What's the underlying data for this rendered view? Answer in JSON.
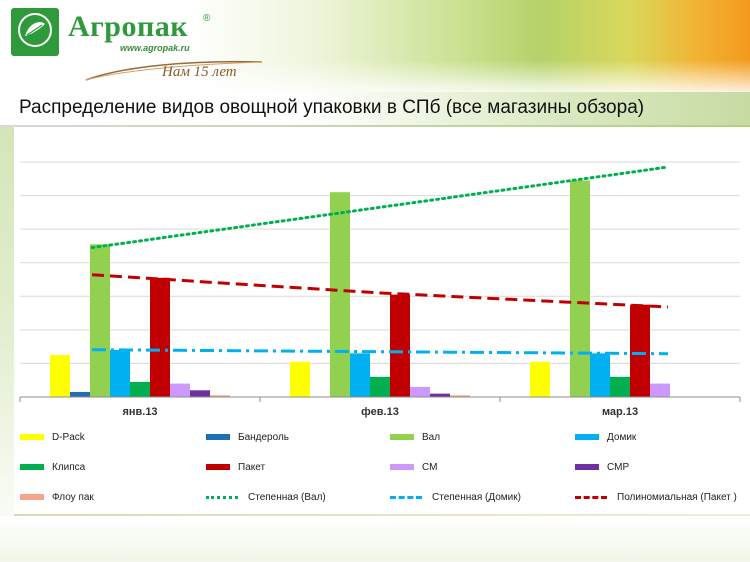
{
  "header": {
    "brand_name": "Агропак",
    "brand_reg": "®",
    "brand_url": "www.agropak.ru",
    "brand_years": "Нам 15 лет",
    "logo_text": "Agropack"
  },
  "title": "Распределение видов овощной упаковки в СПб (все магазины обзора)",
  "colors": {
    "header_green": "#2f9a3b",
    "accent_orange": "#f39a1e",
    "gridline": "#d9d9d9"
  },
  "chart_data": {
    "type": "bar",
    "categories": [
      "янв.13",
      "фев.13",
      "мар.13"
    ],
    "ylim": [
      0,
      70
    ],
    "y_ticks": [
      0,
      10,
      20,
      30,
      40,
      50,
      60,
      70
    ],
    "grid": true,
    "legend_position": "bottom",
    "series": [
      {
        "name": "D-Pack",
        "color": "#ffff00",
        "values": [
          12.5,
          10.5,
          10.5
        ]
      },
      {
        "name": "Бандероль",
        "color": "#1f6fb5",
        "values": [
          1.5,
          0,
          0
        ]
      },
      {
        "name": "Вал",
        "color": "#92d050",
        "values": [
          45.5,
          61,
          64.5
        ]
      },
      {
        "name": "Домик",
        "color": "#00b0f0",
        "values": [
          14,
          13,
          13
        ]
      },
      {
        "name": "Клипса",
        "color": "#00b050",
        "values": [
          4.5,
          6,
          6
        ]
      },
      {
        "name": "Пакет",
        "color": "#c00000",
        "values": [
          35.5,
          30.5,
          27.5
        ]
      },
      {
        "name": "СМ",
        "color": "#cc99ff",
        "values": [
          4,
          3,
          4
        ]
      },
      {
        "name": "СМР",
        "color": "#7030a0",
        "values": [
          2,
          1,
          0
        ]
      },
      {
        "name": "Флоу пак",
        "color": "#f4a58a",
        "values": [
          0.5,
          0.5,
          0
        ]
      }
    ],
    "trendlines": [
      {
        "name": "Степенная  (Вал)",
        "color": "#00b050",
        "style": "dotted",
        "values": [
          46.5,
          56.5,
          66.5
        ]
      },
      {
        "name": "Степенная  (Домик)",
        "color": "#00b0f0",
        "style": "dashdot",
        "values": [
          14,
          13.5,
          13
        ]
      },
      {
        "name": "Полиномиальная  (Пакет  )",
        "color": "#c00000",
        "style": "dashed",
        "values": [
          35.5,
          31,
          27.5
        ]
      }
    ]
  }
}
